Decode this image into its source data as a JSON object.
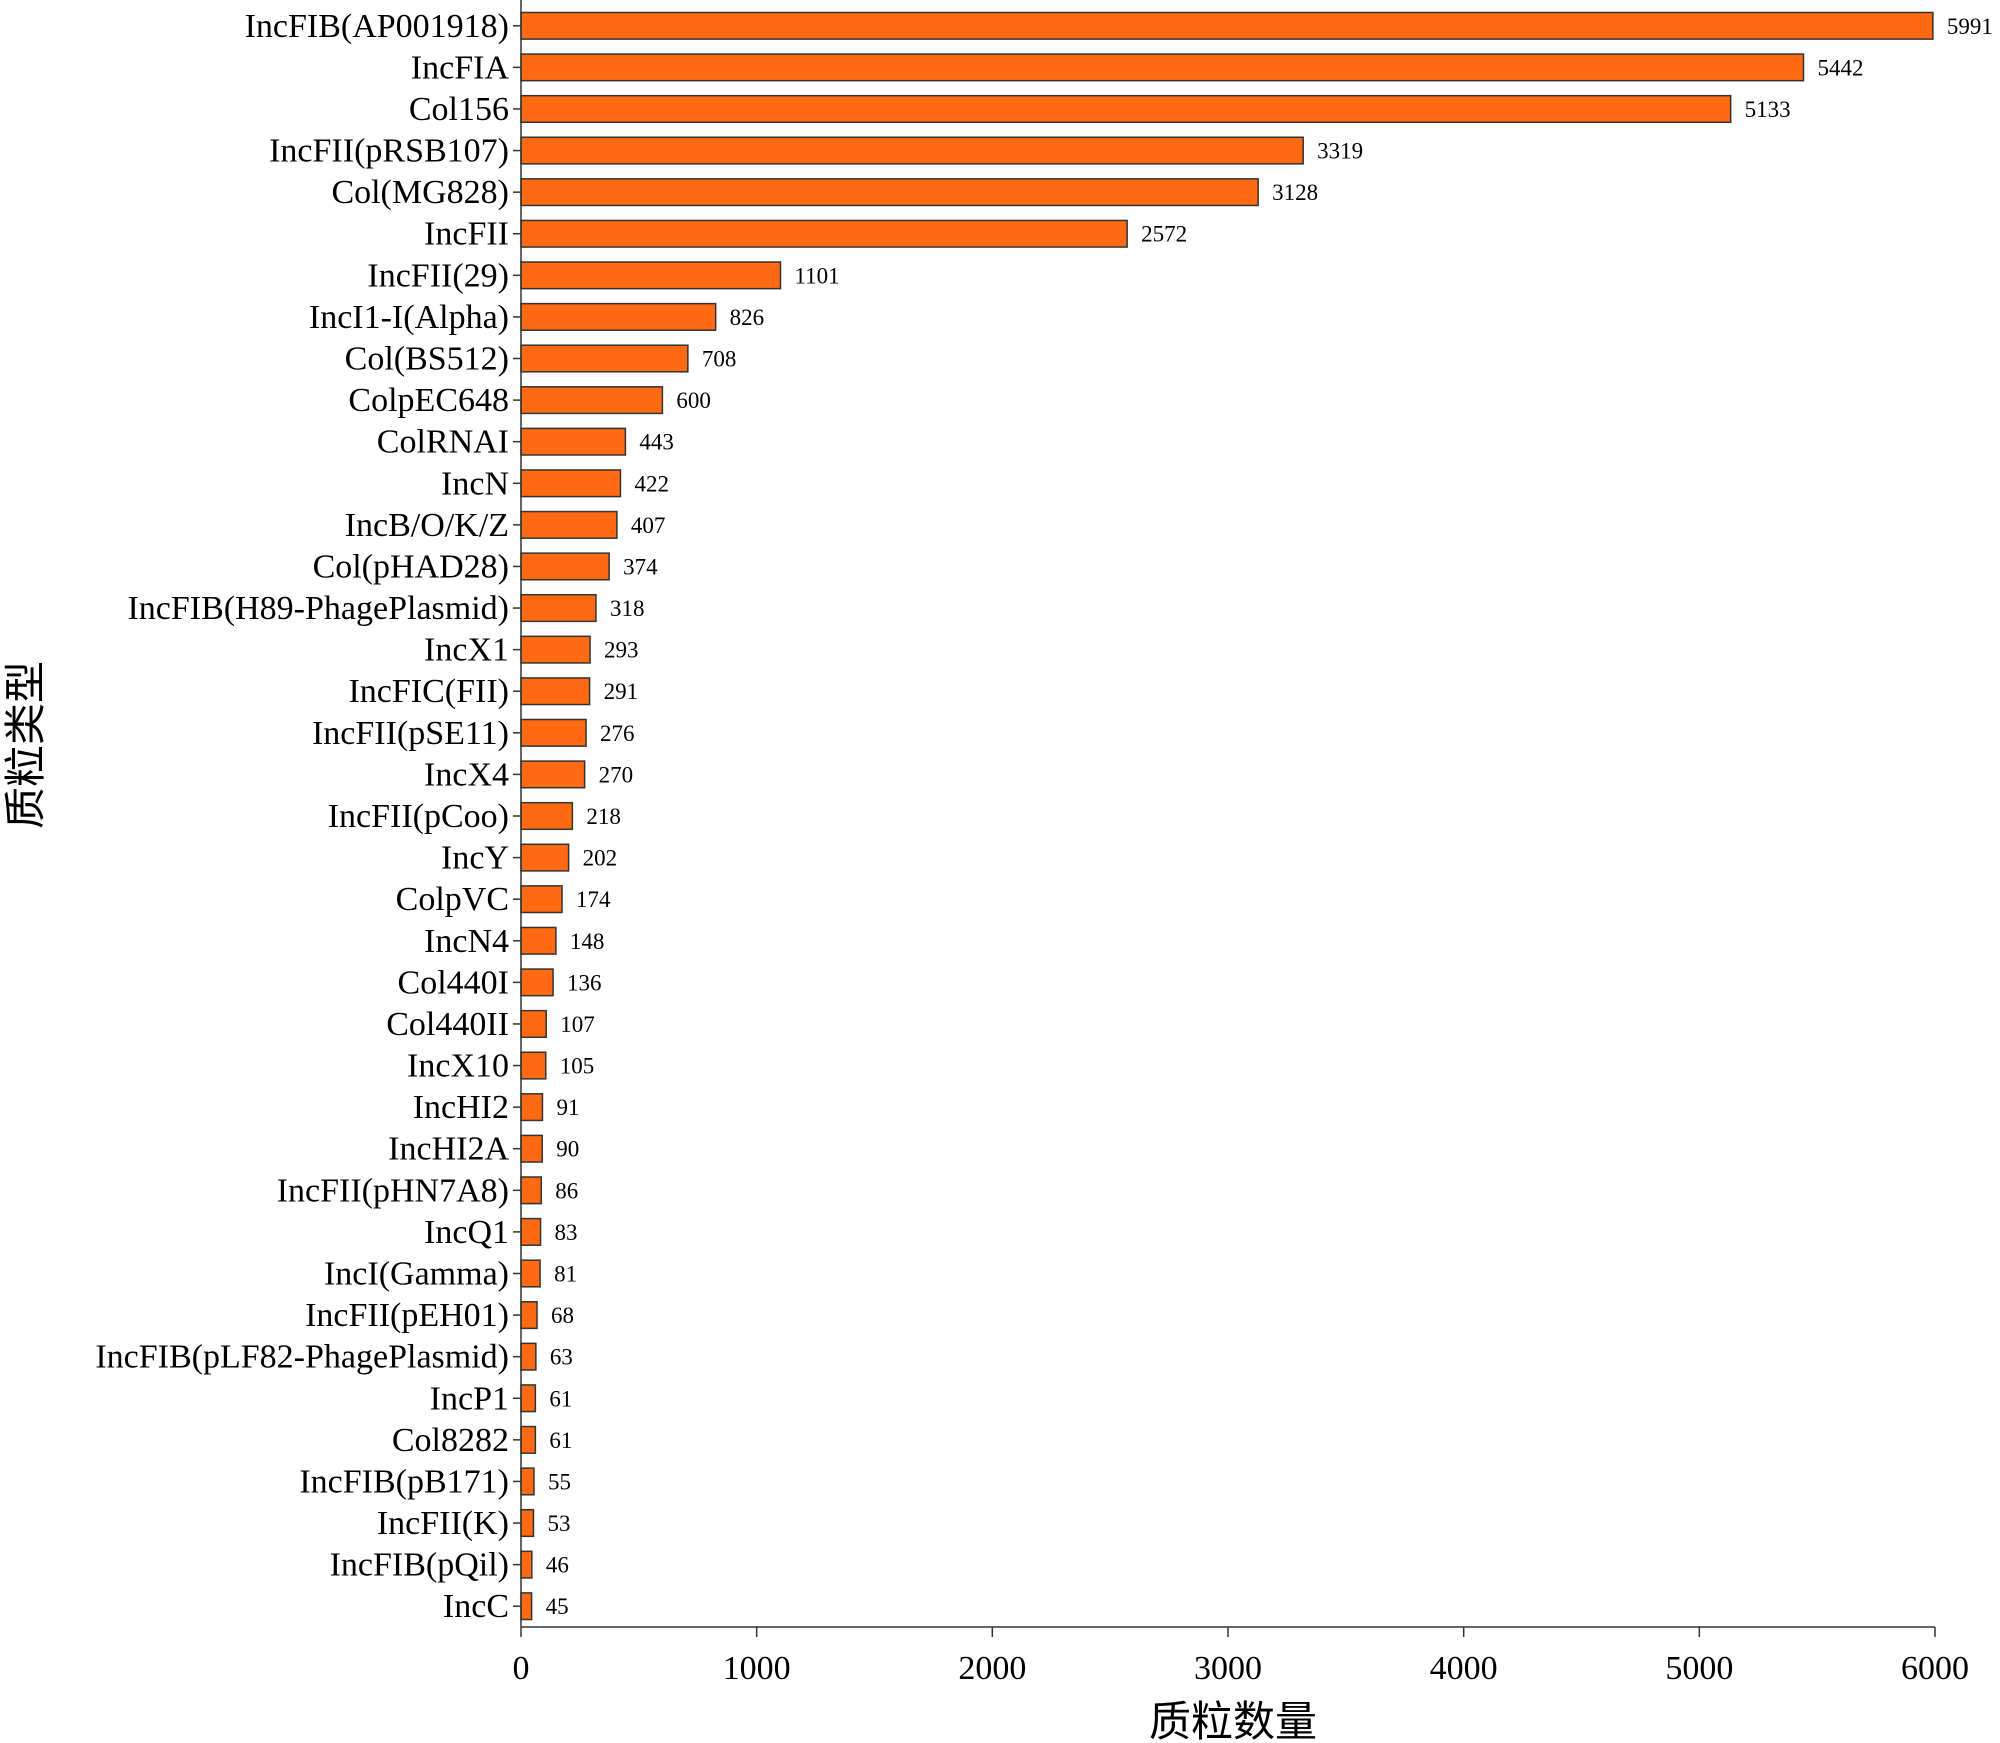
{
  "chart_data": {
    "type": "bar",
    "orientation": "horizontal",
    "xlabel": "质粒数量",
    "ylabel": "质粒类型",
    "xlim": [
      0,
      6000
    ],
    "xticks": [
      0,
      1000,
      2000,
      3000,
      4000,
      5000,
      6000
    ],
    "grid": false,
    "legend": "none",
    "bar_color": "#ff6a12",
    "bar_edge_color": "#333333",
    "categories": [
      "IncFIB(AP001918)",
      "IncFIA",
      "Col156",
      "IncFII(pRSB107)",
      "Col(MG828)",
      "IncFII",
      "IncFII(29)",
      "IncI1-I(Alpha)",
      "Col(BS512)",
      "ColpEC648",
      "ColRNAI",
      "IncN",
      "IncB/O/K/Z",
      "Col(pHAD28)",
      "IncFIB(H89-PhagePlasmid)",
      "IncX1",
      "IncFIC(FII)",
      "IncFII(pSE11)",
      "IncX4",
      "IncFII(pCoo)",
      "IncY",
      "ColpVC",
      "IncN4",
      "Col440I",
      "Col440II",
      "IncX10",
      "IncHI2",
      "IncHI2A",
      "IncFII(pHN7A8)",
      "IncQ1",
      "IncI(Gamma)",
      "IncFII(pEH01)",
      "IncFIB(pLF82-PhagePlasmid)",
      "IncP1",
      "Col8282",
      "IncFIB(pB171)",
      "IncFII(K)",
      "IncFIB(pQil)",
      "IncC"
    ],
    "values": [
      5991,
      5442,
      5133,
      3319,
      3128,
      2572,
      1101,
      826,
      708,
      600,
      443,
      422,
      407,
      374,
      318,
      293,
      291,
      276,
      270,
      218,
      202,
      174,
      148,
      136,
      107,
      105,
      91,
      90,
      86,
      83,
      81,
      68,
      63,
      61,
      61,
      55,
      53,
      46,
      45
    ]
  }
}
